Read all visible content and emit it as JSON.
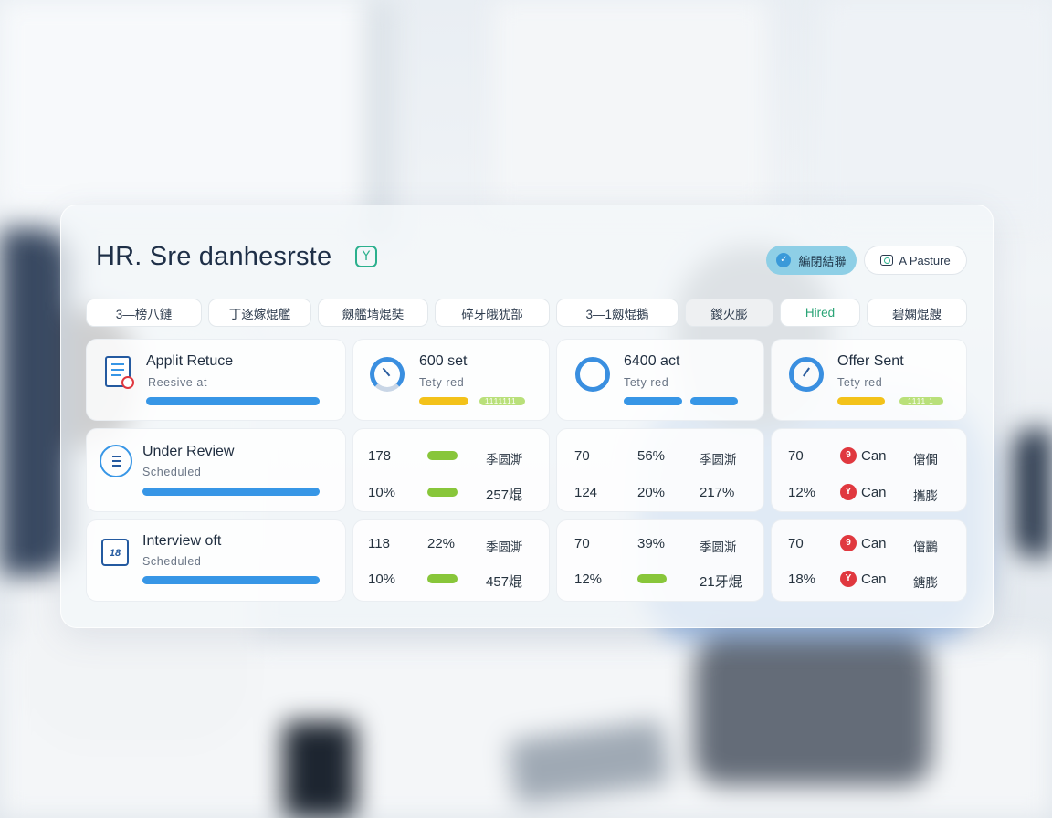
{
  "header": {
    "title": "HR. Sre danhesrste",
    "title_badge": "Y",
    "primary_button": {
      "check": "✓",
      "label": "編閉結聯"
    },
    "secondary_button": {
      "label": "A Pasture"
    }
  },
  "tabs": [
    {
      "label": "3—榜八鏈",
      "active": false
    },
    {
      "label": "丁逐嫁焜艦",
      "active": false
    },
    {
      "label": "劔艦埥焜奘",
      "active": false
    },
    {
      "label": "碎牙皒犹部",
      "active": false
    },
    {
      "label": "3—1劔焜鵝",
      "active": false
    },
    {
      "label": "鍐火膨",
      "active": true
    },
    {
      "label": "Hired",
      "active": false,
      "color": "#2aa476"
    },
    {
      "label": "碧嫻焜艘",
      "active": false
    }
  ],
  "stages": [
    {
      "title": "Applit Retuce",
      "subtitle": "Reesive at",
      "icon": "document-icon",
      "progress": 1.0
    },
    {
      "title": "Under Review",
      "subtitle": "Scheduled",
      "icon": "list-icon",
      "progress": 1.0
    },
    {
      "title": "Interview oft",
      "subtitle": "Scheduled",
      "icon": "calendar-icon",
      "icon_text": "18",
      "progress": 1.0
    }
  ],
  "summary_cards": [
    {
      "value": "600 set",
      "subtitle": "Tety red",
      "bar1": "yellow",
      "bar2": "green",
      "bar2_label": "1111111"
    },
    {
      "value": "6400 act",
      "subtitle": "Tety red",
      "bar1": "blue",
      "bar2": "blue"
    },
    {
      "value": "Offer Sent",
      "subtitle": "Tety red",
      "bar1": "yellow",
      "bar2": "green",
      "bar2_label": "1111 1"
    }
  ],
  "grid": {
    "row1": {
      "col1": [
        [
          "178",
          "",
          "季圆澌"
        ],
        [
          "10%",
          "",
          "257焜"
        ]
      ],
      "col2": [
        [
          "70",
          "56%",
          "季圆澌"
        ],
        [
          "124",
          "20%",
          "217%"
        ]
      ],
      "col3": [
        [
          "70",
          "Can",
          "僒僩"
        ],
        [
          "12%",
          "Can",
          "攜膨"
        ]
      ]
    },
    "row2": {
      "col1": [
        [
          "118",
          "22%",
          "季圆澌"
        ],
        [
          "10%",
          "",
          "457焜"
        ]
      ],
      "col2": [
        [
          "70",
          "39%",
          "季圆澌"
        ],
        [
          "12%",
          "",
          "21牙焜"
        ]
      ],
      "col3": [
        [
          "70",
          "Can",
          "僒鸝"
        ],
        [
          "18%",
          "Can",
          "鎕膨"
        ]
      ]
    }
  },
  "badges": {
    "can_a": "9",
    "can_b": "Y"
  },
  "colors": {
    "accent_blue": "#3796e6",
    "yellow": "#f3c21a",
    "green": "#88c63a",
    "hired_green": "#2aa476",
    "danger_red": "#e0383f"
  }
}
